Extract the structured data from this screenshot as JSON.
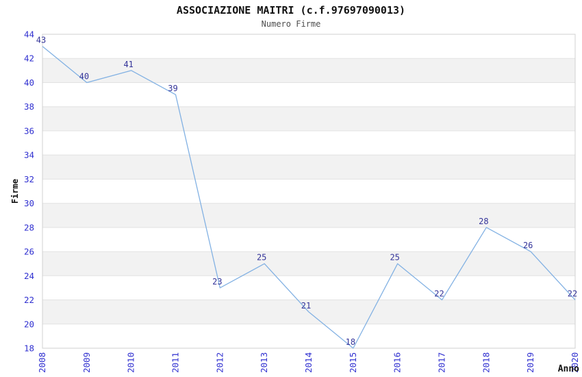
{
  "chart_data": {
    "type": "line",
    "title": "ASSOCIAZIONE MAITRI (c.f.97697090013)",
    "subtitle": "Numero Firme",
    "xlabel": "Anno",
    "ylabel": "Firme",
    "categories": [
      "2008",
      "2009",
      "2010",
      "2011",
      "2012",
      "2013",
      "2014",
      "2015",
      "2016",
      "2017",
      "2018",
      "2019",
      "2020"
    ],
    "values": [
      43,
      40,
      41,
      39,
      23,
      25,
      21,
      18,
      25,
      22,
      28,
      26,
      22
    ],
    "ylim": [
      18,
      44
    ],
    "ytick_step": 2,
    "grid": true,
    "legend": "none",
    "banded_background": true,
    "colors": {
      "line": "#82b1e3",
      "tick_label": "#3030d0",
      "data_label": "#333399",
      "band": "#f2f2f2",
      "grid": "#e2e2e2",
      "border": "#d0d0d0",
      "title": "#111111",
      "subtitle": "#4d4d4d",
      "axis_title": "#111111",
      "plot_background": "#ffffff"
    }
  }
}
